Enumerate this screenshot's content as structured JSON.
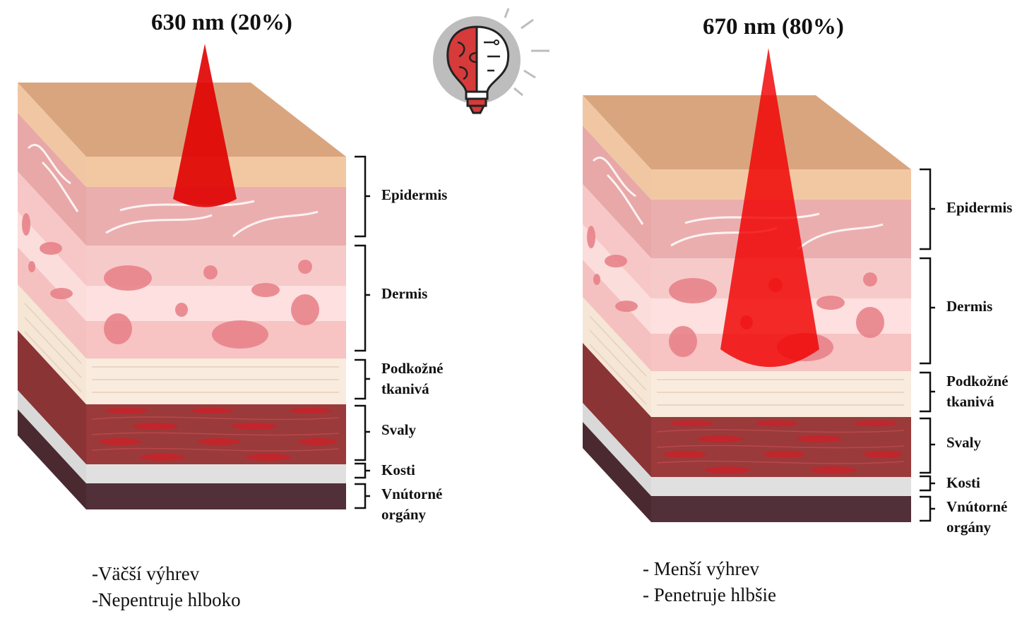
{
  "panels": [
    {
      "title": "630 nm (20%)",
      "layers": [
        "Epidermis",
        "Dermis",
        "Podkožné tkanivá",
        "Svaly",
        "Kosti",
        "Vnútorné orgány"
      ],
      "notes": [
        "-Väčší výhrev",
        "-Nepentruje hlboko"
      ]
    },
    {
      "title": "670 nm (80%)",
      "layers": [
        "Epidermis",
        "Dermis",
        "Podkožné tkanivá",
        "Svaly",
        "Kosti",
        "Vnútorné orgány"
      ],
      "notes": [
        "- Menší výhrev",
        "- Penetruje hlbšie"
      ]
    }
  ]
}
